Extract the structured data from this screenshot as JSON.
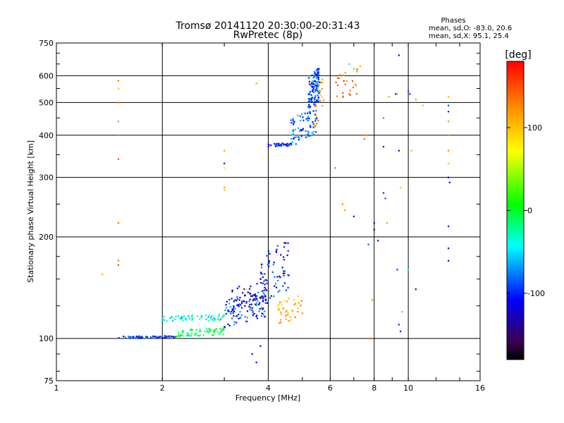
{
  "chart_data": {
    "type": "scatter",
    "title": "Tromsø 20141120 20:30:00-20:31:43",
    "subtitle": "RwPretec (8p)",
    "xlabel": "Frequency [MHz]",
    "ylabel": "Stationary phase Virtual Height [km]",
    "x_scale": "log",
    "y_scale": "log",
    "xlim": [
      1,
      16
    ],
    "ylim": [
      75,
      750
    ],
    "x_ticks": [
      1,
      2,
      4,
      6,
      8,
      10,
      16
    ],
    "x_tick_labels": [
      "1",
      "2",
      "4",
      "6",
      "8",
      "10",
      "16"
    ],
    "y_ticks": [
      75,
      100,
      200,
      300,
      400,
      500,
      600,
      750
    ],
    "y_tick_labels": [
      "75",
      "100",
      "200",
      "300",
      "400",
      "500",
      "600",
      "750"
    ],
    "grid": true,
    "legend": {
      "title": "Phases",
      "line1": "mean, sd,O: -83.0, 20.6",
      "line2": "mean, sd,X:  95.1, 25.4",
      "placement": "top-right"
    },
    "colorbar": {
      "label": "[deg]",
      "min": -180,
      "max": 180,
      "ticks": [
        100,
        0,
        -100
      ],
      "tick_labels": [
        "100",
        "0",
        "-100"
      ]
    },
    "clusters": [
      {
        "f0": 1.5,
        "f1": 2.2,
        "h0": 100,
        "h1": 102,
        "phase": -95,
        "n": 70
      },
      {
        "f0": 2.2,
        "f1": 3.0,
        "h0": 101,
        "h1": 108,
        "phase": -10,
        "n": 70
      },
      {
        "f0": 2.0,
        "f1": 3.0,
        "h0": 112,
        "h1": 118,
        "phase": -40,
        "n": 60
      },
      {
        "f0": 3.0,
        "f1": 4.0,
        "h0": 108,
        "h1": 140,
        "phase": -90,
        "n": 90
      },
      {
        "f0": 3.1,
        "f1": 4.0,
        "h0": 115,
        "h1": 150,
        "phase": -130,
        "n": 60
      },
      {
        "f0": 3.8,
        "f1": 4.6,
        "h0": 125,
        "h1": 200,
        "phase": -100,
        "n": 70
      },
      {
        "f0": 4.2,
        "f1": 5.0,
        "h0": 110,
        "h1": 135,
        "phase": 110,
        "n": 40
      },
      {
        "f0": 4.0,
        "f1": 4.8,
        "h0": 370,
        "h1": 380,
        "phase": -100,
        "n": 40
      },
      {
        "f0": 4.6,
        "f1": 5.5,
        "h0": 380,
        "h1": 480,
        "phase": -80,
        "n": 80
      },
      {
        "f0": 5.2,
        "f1": 5.6,
        "h0": 470,
        "h1": 640,
        "phase": -90,
        "n": 120
      },
      {
        "f0": 5.4,
        "f1": 5.8,
        "h0": 420,
        "h1": 600,
        "phase": 110,
        "n": 20
      },
      {
        "f0": 6.2,
        "f1": 7.2,
        "h0": 500,
        "h1": 640,
        "phase": 130,
        "n": 25
      }
    ],
    "points": [
      {
        "x": 1.5,
        "y": 580,
        "phase": 130
      },
      {
        "x": 1.5,
        "y": 550,
        "phase": 100
      },
      {
        "x": 1.5,
        "y": 500,
        "phase": 140
      },
      {
        "x": 1.5,
        "y": 440,
        "phase": 120
      },
      {
        "x": 1.5,
        "y": 400,
        "phase": 130
      },
      {
        "x": 1.5,
        "y": 340,
        "phase": 150
      },
      {
        "x": 1.5,
        "y": 220,
        "phase": 140
      },
      {
        "x": 1.5,
        "y": 170,
        "phase": 130
      },
      {
        "x": 1.5,
        "y": 165,
        "phase": 150
      },
      {
        "x": 1.35,
        "y": 155,
        "phase": 110
      },
      {
        "x": 3.0,
        "y": 360,
        "phase": 120
      },
      {
        "x": 3.0,
        "y": 330,
        "phase": -110
      },
      {
        "x": 3.0,
        "y": 320,
        "phase": 60
      },
      {
        "x": 3.0,
        "y": 280,
        "phase": 120
      },
      {
        "x": 3.0,
        "y": 275,
        "phase": 100
      },
      {
        "x": 3.6,
        "y": 90,
        "phase": -120
      },
      {
        "x": 3.7,
        "y": 85,
        "phase": -110
      },
      {
        "x": 3.8,
        "y": 95,
        "phase": -130
      },
      {
        "x": 3.7,
        "y": 570,
        "phase": 110
      },
      {
        "x": 6.2,
        "y": 320,
        "phase": 140
      },
      {
        "x": 6.5,
        "y": 250,
        "phase": 130
      },
      {
        "x": 6.6,
        "y": 240,
        "phase": 120
      },
      {
        "x": 7.0,
        "y": 230,
        "phase": -110
      },
      {
        "x": 7.5,
        "y": 390,
        "phase": 140
      },
      {
        "x": 7.6,
        "y": 400,
        "phase": 120
      },
      {
        "x": 7.7,
        "y": 190,
        "phase": -90
      },
      {
        "x": 7.8,
        "y": 100,
        "phase": 140
      },
      {
        "x": 7.9,
        "y": 130,
        "phase": 120
      },
      {
        "x": 8.0,
        "y": 220,
        "phase": -130
      },
      {
        "x": 8.0,
        "y": 210,
        "phase": -150
      },
      {
        "x": 8.2,
        "y": 195,
        "phase": -150
      },
      {
        "x": 8.5,
        "y": 450,
        "phase": 150
      },
      {
        "x": 8.5,
        "y": 370,
        "phase": -110
      },
      {
        "x": 8.5,
        "y": 270,
        "phase": -100
      },
      {
        "x": 8.6,
        "y": 260,
        "phase": -90
      },
      {
        "x": 8.7,
        "y": 220,
        "phase": 120
      },
      {
        "x": 8.8,
        "y": 520,
        "phase": 110
      },
      {
        "x": 9.2,
        "y": 530,
        "phase": -100
      },
      {
        "x": 9.3,
        "y": 530,
        "phase": 120
      },
      {
        "x": 9.4,
        "y": 360,
        "phase": -110
      },
      {
        "x": 9.5,
        "y": 280,
        "phase": 100
      },
      {
        "x": 9.3,
        "y": 160,
        "phase": -100
      },
      {
        "x": 9.4,
        "y": 110,
        "phase": -100
      },
      {
        "x": 9.5,
        "y": 105,
        "phase": -110
      },
      {
        "x": 9.6,
        "y": 120,
        "phase": 120
      },
      {
        "x": 9.4,
        "y": 690,
        "phase": -110
      },
      {
        "x": 10.0,
        "y": 540,
        "phase": -90
      },
      {
        "x": 10.2,
        "y": 360,
        "phase": 110
      },
      {
        "x": 10.1,
        "y": 530,
        "phase": -100
      },
      {
        "x": 10.5,
        "y": 510,
        "phase": 120
      },
      {
        "x": 10.0,
        "y": 160,
        "phase": -40
      },
      {
        "x": 10.5,
        "y": 140,
        "phase": -130
      },
      {
        "x": 11.0,
        "y": 490,
        "phase": 100
      },
      {
        "x": 13.0,
        "y": 520,
        "phase": 110
      },
      {
        "x": 13.0,
        "y": 490,
        "phase": -90
      },
      {
        "x": 13.0,
        "y": 470,
        "phase": -100
      },
      {
        "x": 13.0,
        "y": 440,
        "phase": 120
      },
      {
        "x": 13.0,
        "y": 400,
        "phase": 130
      },
      {
        "x": 13.0,
        "y": 360,
        "phase": 120
      },
      {
        "x": 13.0,
        "y": 330,
        "phase": 100
      },
      {
        "x": 13.0,
        "y": 300,
        "phase": -110
      },
      {
        "x": 13.1,
        "y": 290,
        "phase": -120
      },
      {
        "x": 13.0,
        "y": 215,
        "phase": -110
      },
      {
        "x": 13.0,
        "y": 185,
        "phase": -120
      },
      {
        "x": 13.0,
        "y": 170,
        "phase": -130
      },
      {
        "x": 7.3,
        "y": 640,
        "phase": 110
      },
      {
        "x": 7.0,
        "y": 630,
        "phase": 30
      },
      {
        "x": 6.8,
        "y": 650,
        "phase": -50
      }
    ]
  }
}
